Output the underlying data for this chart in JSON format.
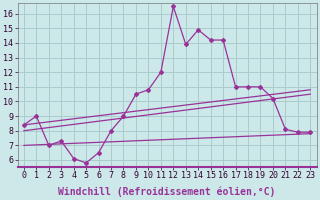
{
  "background_color": "#cce8e8",
  "grid_color": "#aacccc",
  "line_color": "#993399",
  "marker_color": "#993399",
  "xlabel": "Windchill (Refroidissement éolien,°C)",
  "ylabel_values": [
    6,
    7,
    8,
    9,
    10,
    11,
    12,
    13,
    14,
    15,
    16
  ],
  "xlabel_values": [
    0,
    1,
    2,
    3,
    4,
    5,
    6,
    7,
    8,
    9,
    10,
    11,
    12,
    13,
    14,
    15,
    16,
    17,
    18,
    19,
    20,
    21,
    22,
    23
  ],
  "ylim": [
    5.5,
    16.7
  ],
  "xlim": [
    -0.5,
    23.5
  ],
  "series1_x": [
    0,
    1,
    2,
    3,
    4,
    5,
    6,
    7,
    8,
    9,
    10,
    11,
    12,
    13,
    14,
    15,
    16,
    17,
    18,
    19,
    20,
    21,
    22,
    23
  ],
  "series1_y": [
    8.4,
    9.0,
    7.0,
    7.3,
    6.1,
    5.8,
    6.5,
    8.0,
    9.0,
    10.5,
    10.8,
    12.0,
    16.5,
    13.9,
    14.9,
    14.2,
    14.2,
    11.0,
    11.0,
    11.0,
    10.2,
    8.1,
    7.9,
    7.9
  ],
  "series2_x": [
    0,
    23
  ],
  "series2_y": [
    8.4,
    10.8
  ],
  "series3_x": [
    0,
    23
  ],
  "series3_y": [
    8.0,
    10.5
  ],
  "series4_x": [
    0,
    23
  ],
  "series4_y": [
    7.0,
    7.8
  ],
  "font_size": 7
}
